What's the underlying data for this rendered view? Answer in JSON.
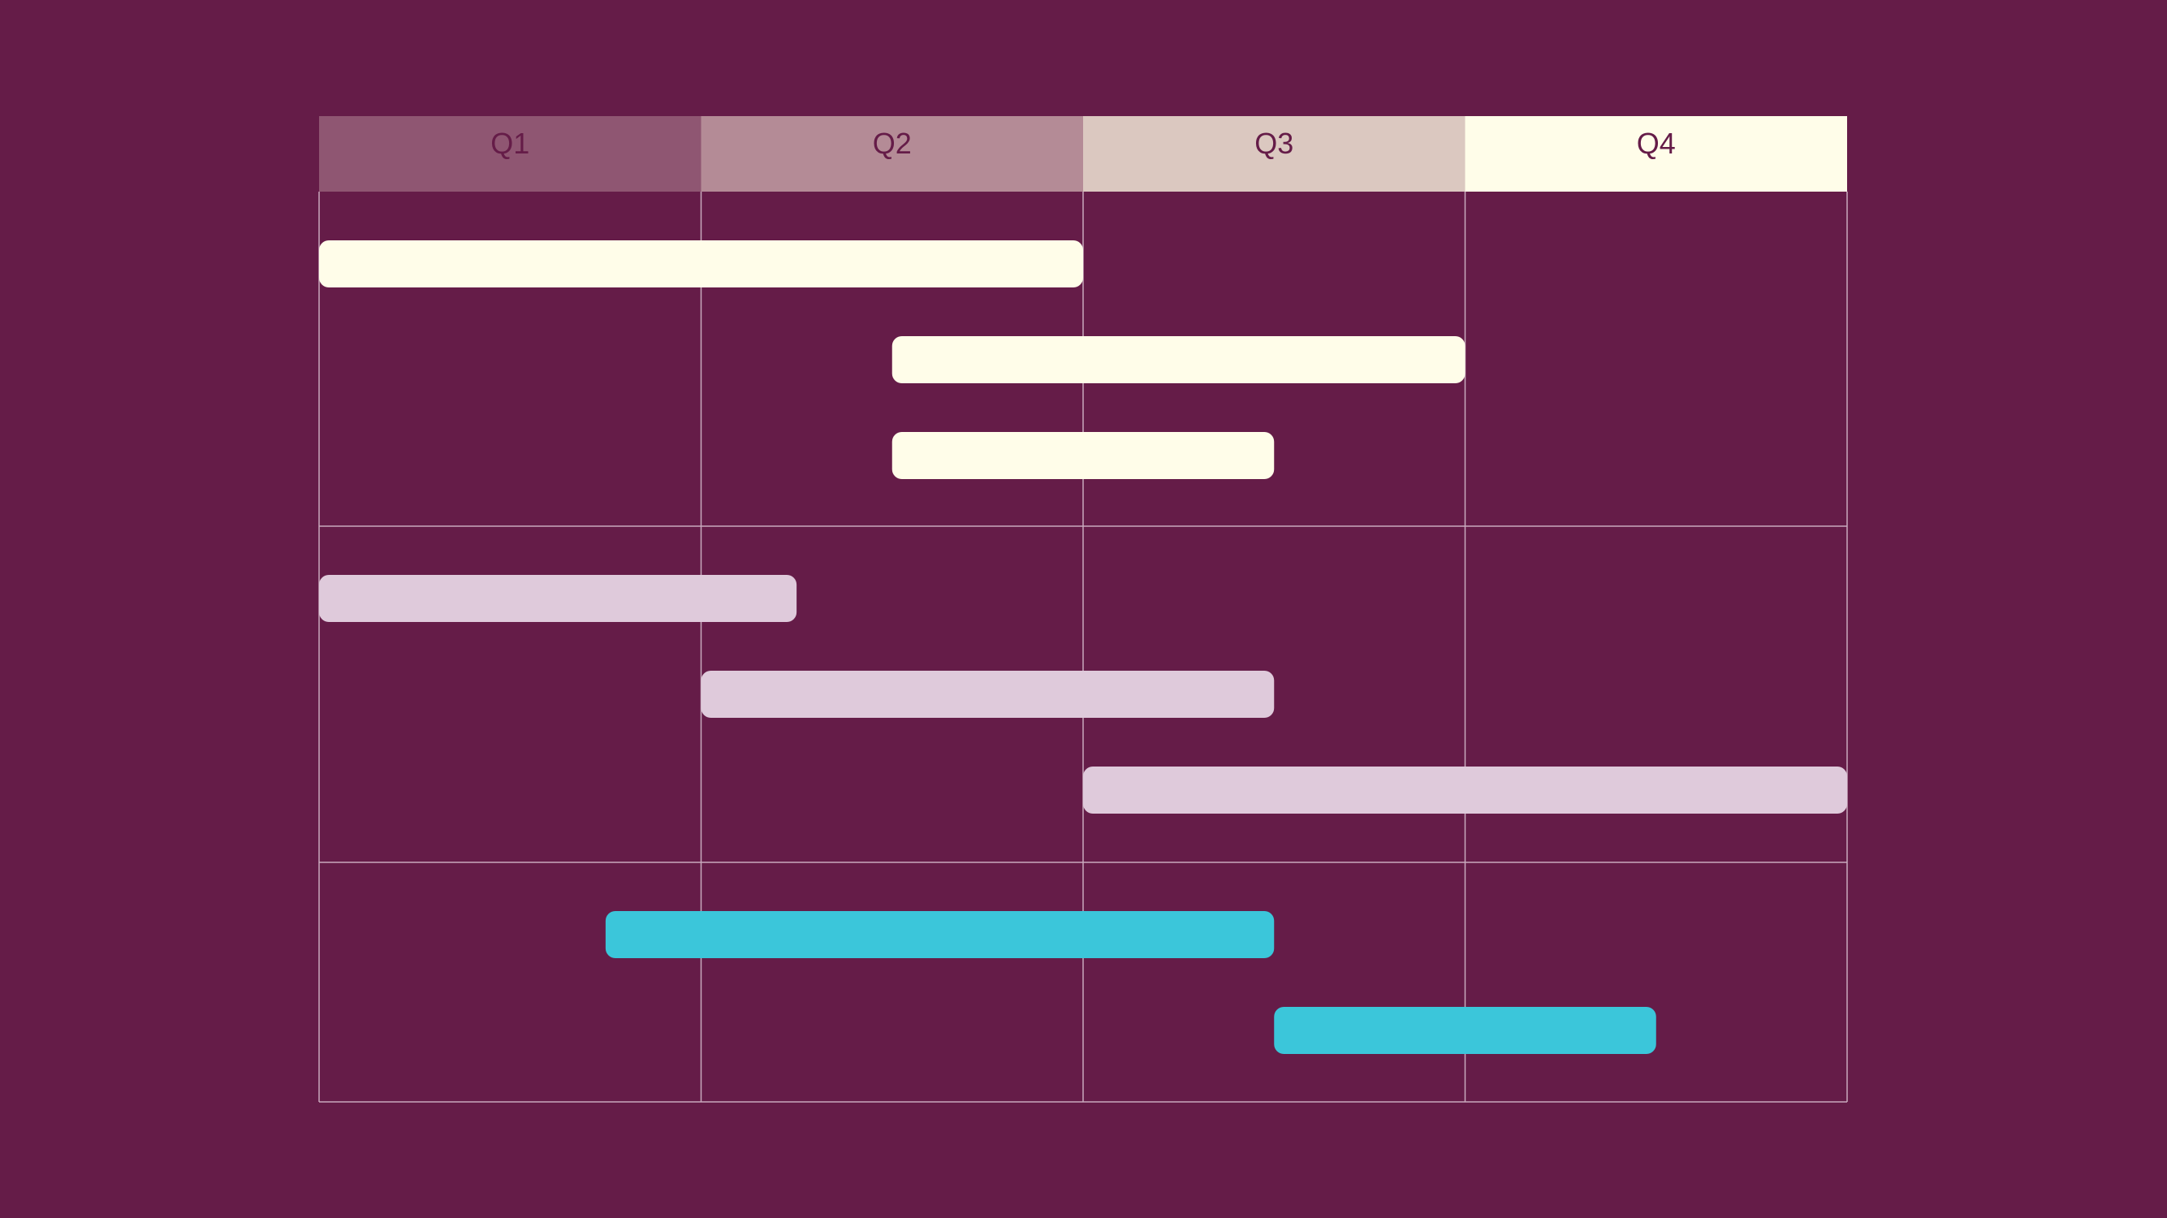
{
  "colors": {
    "background": "#651c48",
    "grid_line": "#c9aabd",
    "header_text": "#651c48",
    "header_fills": [
      "#8f5672",
      "#b48b96",
      "#dbc8c0",
      "#fffde9"
    ]
  },
  "chart_data": {
    "type": "gantt",
    "title": "",
    "x_unit": "quarter",
    "xlim": [
      0,
      4
    ],
    "quarters": [
      "Q1",
      "Q2",
      "Q3",
      "Q4"
    ],
    "groups": [
      {
        "color": "#fffde9",
        "tasks": [
          {
            "start": 0.0,
            "end": 2.0
          },
          {
            "start": 1.5,
            "end": 3.0
          },
          {
            "start": 1.5,
            "end": 2.5
          }
        ]
      },
      {
        "color": "#dfcadb",
        "tasks": [
          {
            "start": 0.0,
            "end": 1.25
          },
          {
            "start": 1.0,
            "end": 2.5
          },
          {
            "start": 2.0,
            "end": 4.0
          }
        ]
      },
      {
        "color": "#3bc6da",
        "tasks": [
          {
            "start": 0.75,
            "end": 2.5
          },
          {
            "start": 2.5,
            "end": 3.5
          }
        ]
      }
    ]
  }
}
